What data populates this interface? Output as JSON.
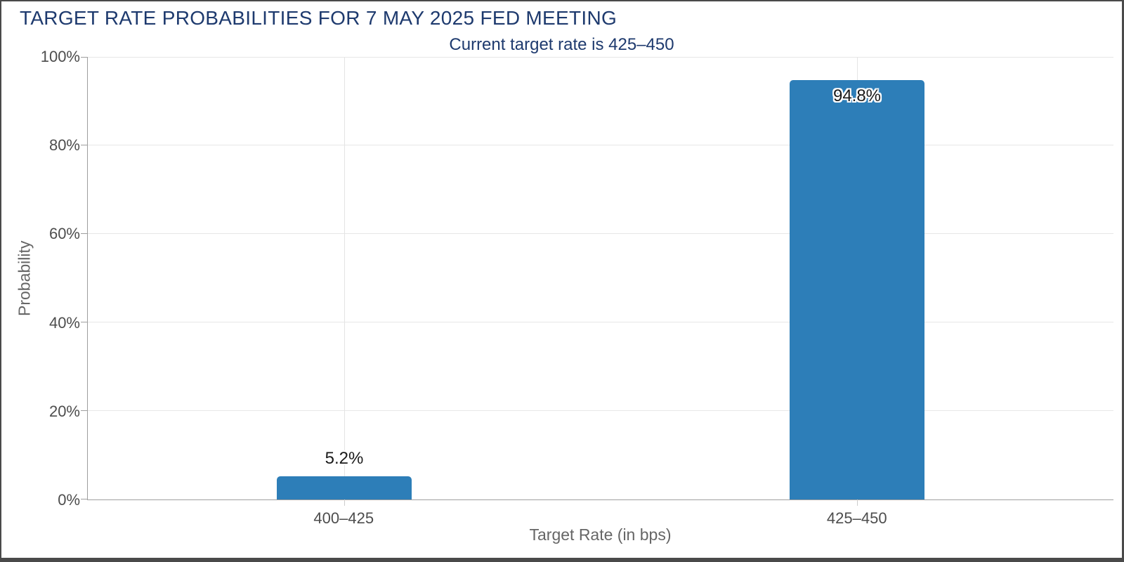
{
  "chart_data": {
    "type": "bar",
    "title": "TARGET RATE PROBABILITIES FOR 7 MAY 2025 FED MEETING",
    "subtitle": "Current target rate is 425–450",
    "categories": [
      "400–425",
      "425–450"
    ],
    "values": [
      5.2,
      94.8
    ],
    "value_labels": [
      "5.2%",
      "94.8%"
    ],
    "xlabel": "Target Rate (in bps)",
    "ylabel": "Probability",
    "ylim": [
      0,
      100
    ],
    "yticks": [
      "0%",
      "20%",
      "40%",
      "60%",
      "80%",
      "100%"
    ],
    "grid": true,
    "legend_position": "none",
    "bar_color": "#2d7eb8",
    "title_color": "#1e3a6e",
    "axis_text_color": "#4d4d4d",
    "axis_title_color": "#666666"
  }
}
